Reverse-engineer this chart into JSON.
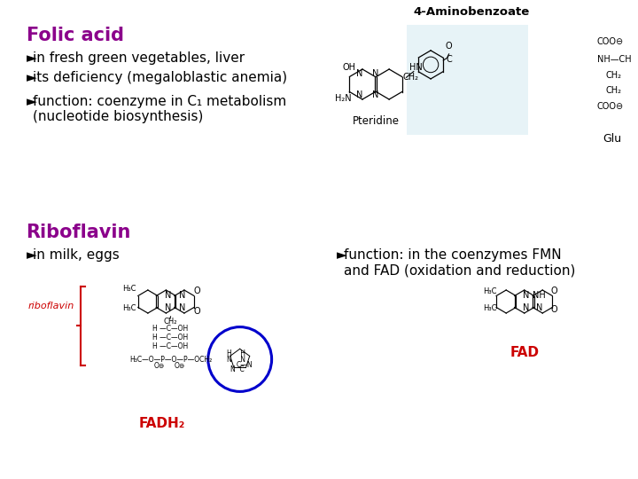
{
  "bg_color": "#ffffff",
  "title_folic": "Folic acid",
  "title_ribo": "Riboflavin",
  "title_color": "#8B008B",
  "bullet": "►",
  "folic_bullets": [
    "in fresh green vegetables, liver",
    "its deficiency (megaloblastic anemia)",
    "function: coenzyme in C₁ metabolism\n(nucleotide biosynthesis)"
  ],
  "ribo_bullets": [
    "in milk, eggs"
  ],
  "ribo_right": "function: in the coenzymes FMN\nand FAD (oxidation and reduction)",
  "label_aminobenzoate": "4-Aminobenzoate",
  "label_pteridine": "Pteridine",
  "label_glu": "Glu",
  "label_fadh2": "FADH₂",
  "label_fad": "FAD",
  "label_riboflavin": "riboflavin",
  "red_color": "#cc0000",
  "blue_color": "#0000cc",
  "text_color": "#000000",
  "bullet_color": "#000000",
  "font_size_title": 15,
  "font_size_body": 11,
  "font_size_label": 10,
  "highlight_box_color": "#d0e8f0"
}
